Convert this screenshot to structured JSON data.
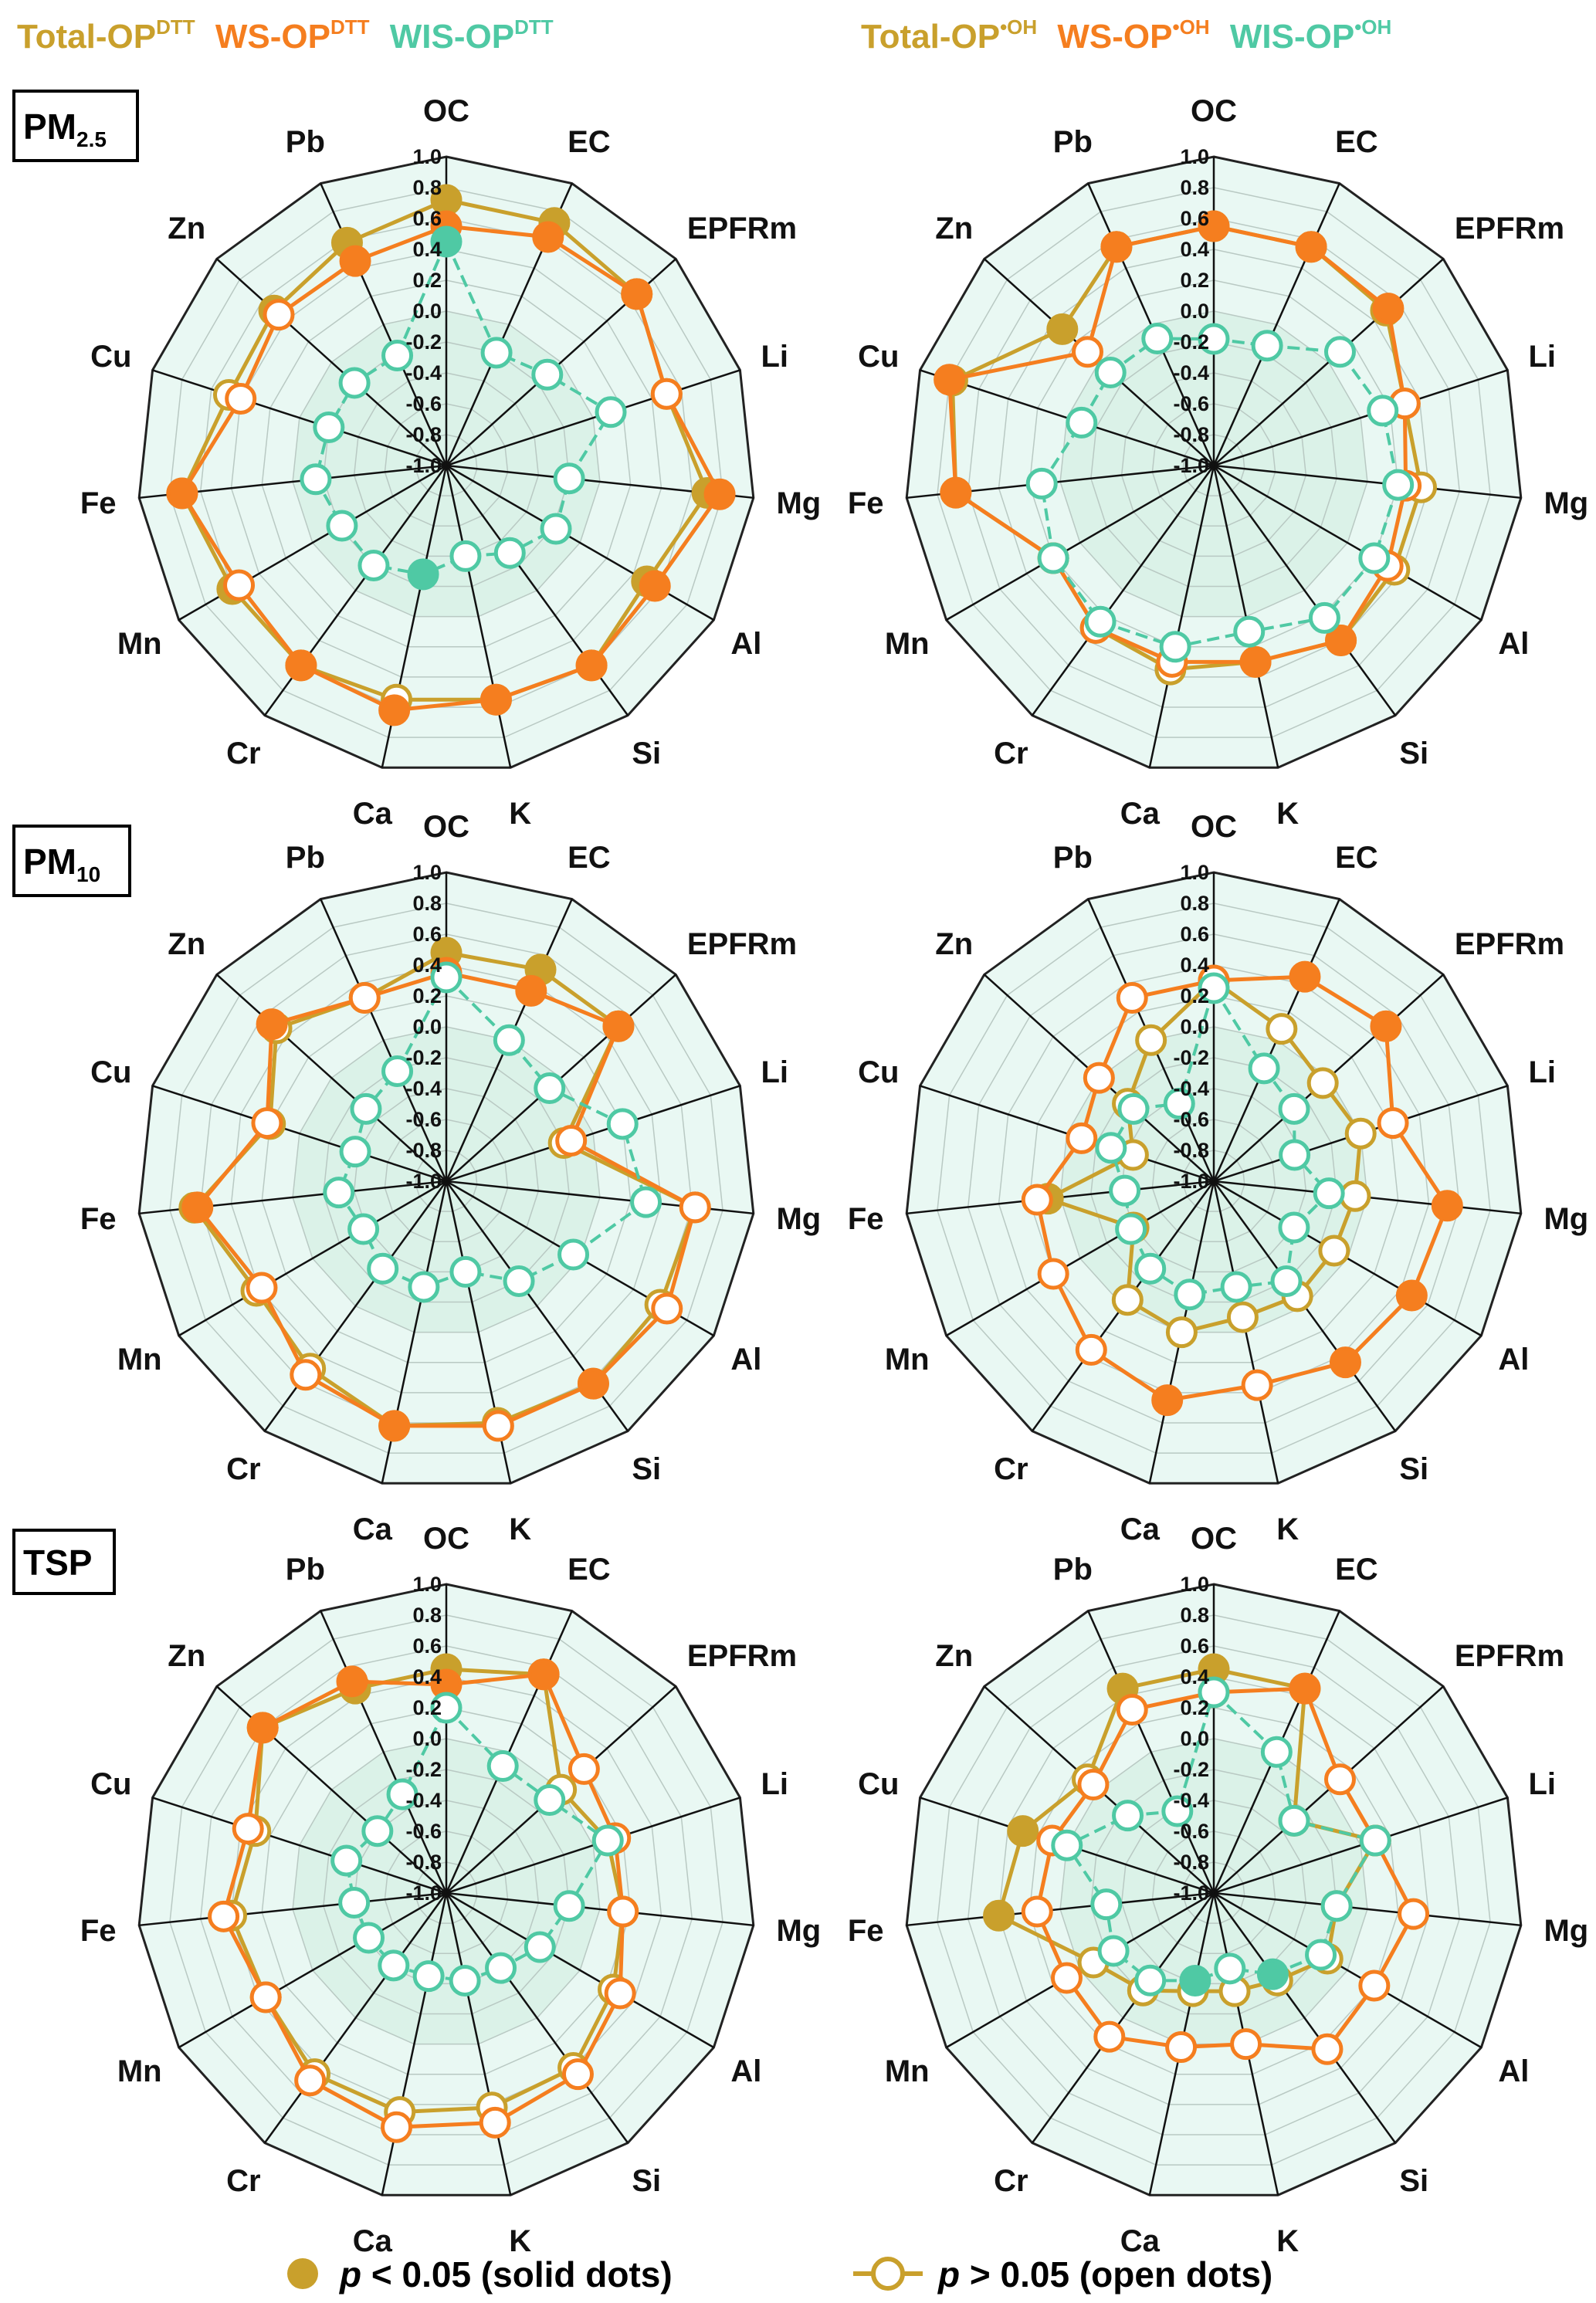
{
  "header": {
    "left": [
      {
        "base": "Total-OP",
        "sup": "DTT",
        "color": "#c9a02c"
      },
      {
        "base": "WS-OP",
        "sup": "DTT",
        "color": "#f57e1f"
      },
      {
        "base": "WIS-OP",
        "sup": "DTT",
        "color": "#4fc9a4"
      }
    ],
    "right": [
      {
        "base": "Total-OP",
        "sup": "•OH",
        "color": "#c9a02c"
      },
      {
        "base": "WS-OP",
        "sup": "•OH",
        "color": "#f57e1f"
      },
      {
        "base": "WIS-OP",
        "sup": "•OH",
        "color": "#4fc9a4"
      }
    ]
  },
  "row_labels": [
    {
      "base": "PM",
      "sub": "2.5"
    },
    {
      "base": "PM",
      "sub": "10"
    },
    {
      "base": "TSP",
      "sub": ""
    }
  ],
  "bottom_legend": {
    "solid_p": "p",
    "solid_text": " < 0.05 (solid dots)",
    "open_p": "p",
    "open_text": " > 0.05 (open dots)"
  },
  "colors": {
    "total": "#c9a02c",
    "ws": "#f57e1f",
    "wis": "#4fc9a4",
    "background": "#e9f8f3",
    "inner_fill": "#d2efe1"
  },
  "chart_data": [
    {
      "type": "radar",
      "row": "PM2.5",
      "op": "DTT",
      "categories": [
        "OC",
        "EC",
        "EPFRm",
        "Li",
        "Mg",
        "Al",
        "Si",
        "K",
        "Ca",
        "Cr",
        "Mn",
        "Fe",
        "Cu",
        "Zn",
        "Pb"
      ],
      "rlim": [
        -1.0,
        1.0
      ],
      "ticks": [
        "1.0",
        "0.8",
        "0.6",
        "0.4",
        "0.2",
        "0.0",
        "-0.2",
        "-0.4",
        "-0.6",
        "-0.8",
        "-1.0"
      ],
      "series": [
        {
          "name": "Total-OP",
          "values": [
            0.72,
            0.72,
            0.66,
            0.5,
            0.7,
            0.5,
            0.6,
            0.55,
            0.55,
            0.6,
            0.6,
            0.72,
            0.48,
            0.5,
            0.58
          ],
          "solid": [
            1,
            1,
            1,
            0,
            1,
            1,
            1,
            1,
            0,
            1,
            1,
            1,
            0,
            1,
            1
          ]
        },
        {
          "name": "WS-OP",
          "values": [
            0.55,
            0.62,
            0.66,
            0.5,
            0.78,
            0.56,
            0.6,
            0.55,
            0.62,
            0.6,
            0.55,
            0.72,
            0.4,
            0.46,
            0.45
          ],
          "solid": [
            1,
            1,
            1,
            0,
            1,
            1,
            1,
            1,
            1,
            1,
            0,
            1,
            0,
            0,
            1
          ]
        },
        {
          "name": "WIS-OP",
          "values": [
            0.45,
            -0.2,
            -0.12,
            0.12,
            -0.2,
            -0.18,
            -0.3,
            -0.4,
            -0.28,
            -0.2,
            -0.22,
            -0.15,
            -0.2,
            -0.2,
            -0.22
          ],
          "solid": [
            1,
            0,
            0,
            0,
            0,
            0,
            0,
            0,
            1,
            0,
            0,
            0,
            0,
            0,
            0
          ]
        }
      ]
    },
    {
      "type": "radar",
      "row": "PM2.5",
      "op": "•OH",
      "categories": [
        "OC",
        "EC",
        "EPFRm",
        "Li",
        "Mg",
        "Al",
        "Si",
        "K",
        "Ca",
        "Cr",
        "Mn",
        "Fe",
        "Cu",
        "Zn",
        "Pb"
      ],
      "rlim": [
        -1.0,
        1.0
      ],
      "ticks": [
        "1.0",
        "0.8",
        "0.6",
        "0.4",
        "0.2",
        "0.0",
        "-0.2",
        "-0.4",
        "-0.6",
        "-0.8",
        "-1.0"
      ],
      "series": [
        {
          "name": "Total-OP",
          "values": [
            0.55,
            0.55,
            0.5,
            0.3,
            0.35,
            0.35,
            0.4,
            0.3,
            0.35,
            0.3,
            0.2,
            0.68,
            0.78,
            0.32,
            0.55
          ],
          "solid": [
            1,
            1,
            1,
            0,
            0,
            0,
            1,
            0,
            0,
            0,
            0,
            1,
            1,
            1,
            1
          ]
        },
        {
          "name": "WS-OP",
          "values": [
            0.55,
            0.55,
            0.52,
            0.3,
            0.25,
            0.3,
            0.4,
            0.3,
            0.3,
            0.3,
            0.2,
            0.68,
            0.8,
            0.1,
            0.55
          ],
          "solid": [
            1,
            1,
            1,
            0,
            0,
            0,
            1,
            1,
            0,
            0,
            0,
            1,
            1,
            0,
            1
          ]
        },
        {
          "name": "WIS-OP",
          "values": [
            -0.18,
            -0.15,
            0.1,
            0.15,
            0.2,
            0.2,
            0.22,
            0.1,
            0.2,
            0.25,
            0.2,
            0.12,
            -0.1,
            -0.1,
            -0.1
          ],
          "solid": [
            0,
            0,
            0,
            0,
            0,
            0,
            0,
            0,
            0,
            0,
            0,
            0,
            0,
            0,
            0
          ]
        }
      ]
    },
    {
      "type": "radar",
      "row": "PM10",
      "op": "DTT",
      "categories": [
        "OC",
        "EC",
        "EPFRm",
        "Li",
        "Mg",
        "Al",
        "Si",
        "K",
        "Ca",
        "Cr",
        "Mn",
        "Fe",
        "Cu",
        "Zn",
        "Pb"
      ],
      "rlim": [
        -1.0,
        1.0
      ],
      "ticks": [
        "1.0",
        "0.8",
        "0.6",
        "0.4",
        "0.2",
        "0.0",
        "-0.2",
        "-0.4",
        "-0.6",
        "-0.8",
        "-1.0"
      ],
      "series": [
        {
          "name": "Total-OP",
          "values": [
            0.48,
            0.5,
            0.5,
            -0.2,
            0.62,
            0.6,
            0.62,
            0.6,
            0.62,
            0.5,
            0.42,
            0.64,
            0.2,
            0.48,
            0.3
          ],
          "solid": [
            1,
            1,
            1,
            0,
            0,
            0,
            1,
            0,
            0,
            0,
            0,
            1,
            0,
            0,
            0
          ]
        },
        {
          "name": "WS-OP",
          "values": [
            0.35,
            0.35,
            0.5,
            -0.15,
            0.62,
            0.65,
            0.62,
            0.62,
            0.62,
            0.55,
            0.38,
            0.62,
            0.22,
            0.52,
            0.3
          ],
          "solid": [
            1,
            1,
            1,
            0,
            0,
            0,
            1,
            0,
            1,
            0,
            0,
            1,
            0,
            1,
            0
          ]
        },
        {
          "name": "WIS-OP",
          "values": [
            0.32,
            0.0,
            -0.1,
            0.2,
            0.3,
            -0.05,
            -0.2,
            -0.4,
            -0.3,
            -0.3,
            -0.38,
            -0.3,
            -0.38,
            -0.3,
            -0.22
          ],
          "solid": [
            0,
            0,
            0,
            0,
            0,
            0,
            0,
            0,
            0,
            0,
            0,
            0,
            0,
            0,
            0
          ]
        }
      ]
    },
    {
      "type": "radar",
      "row": "PM10",
      "op": "•OH",
      "categories": [
        "OC",
        "EC",
        "EPFRm",
        "Li",
        "Mg",
        "Al",
        "Si",
        "K",
        "Ca",
        "Cr",
        "Mn",
        "Fe",
        "Cu",
        "Zn",
        "Pb"
      ],
      "rlim": [
        -1.0,
        1.0
      ],
      "ticks": [
        "1.0",
        "0.8",
        "0.6",
        "0.4",
        "0.2",
        "0.0",
        "-0.2",
        "-0.4",
        "-0.6",
        "-0.8",
        "-1.0"
      ],
      "series": [
        {
          "name": "Total-OP",
          "values": [
            0.3,
            0.08,
            -0.05,
            0.0,
            -0.08,
            -0.1,
            -0.08,
            -0.1,
            0.0,
            -0.05,
            -0.4,
            0.08,
            -0.45,
            -0.25,
            0.0
          ],
          "solid": [
            0,
            0,
            0,
            0,
            0,
            0,
            0,
            0,
            0,
            0,
            0,
            1,
            0,
            0,
            0
          ]
        },
        {
          "name": "WS-OP",
          "values": [
            0.3,
            0.45,
            0.5,
            0.22,
            0.52,
            0.48,
            0.45,
            0.35,
            0.45,
            0.35,
            0.2,
            0.15,
            -0.1,
            0.0,
            0.3
          ],
          "solid": [
            0,
            1,
            1,
            0,
            1,
            1,
            1,
            0,
            1,
            0,
            0,
            0,
            0,
            0,
            0
          ]
        },
        {
          "name": "WIS-OP",
          "values": [
            0.25,
            -0.2,
            -0.3,
            -0.45,
            -0.25,
            -0.4,
            -0.2,
            -0.3,
            -0.25,
            -0.3,
            -0.38,
            -0.42,
            -0.3,
            -0.3,
            -0.45
          ],
          "solid": [
            0,
            0,
            0,
            0,
            0,
            0,
            0,
            0,
            0,
            0,
            0,
            0,
            0,
            0,
            0
          ]
        }
      ]
    },
    {
      "type": "radar",
      "row": "TSP",
      "op": "DTT",
      "categories": [
        "OC",
        "EC",
        "EPFRm",
        "Li",
        "Mg",
        "Al",
        "Si",
        "K",
        "Ca",
        "Cr",
        "Mn",
        "Fe",
        "Cu",
        "Zn",
        "Pb"
      ],
      "rlim": [
        -1.0,
        1.0
      ],
      "ticks": [
        "1.0",
        "0.8",
        "0.6",
        "0.4",
        "0.2",
        "0.0",
        "-0.2",
        "-0.4",
        "-0.6",
        "-0.8",
        "-1.0"
      ],
      "series": [
        {
          "name": "Total-OP",
          "values": [
            0.45,
            0.55,
            0.0,
            0.1,
            0.15,
            0.25,
            0.4,
            0.42,
            0.45,
            0.45,
            0.35,
            0.4,
            0.3,
            0.6,
            0.45
          ],
          "solid": [
            1,
            1,
            0,
            0,
            0,
            0,
            0,
            0,
            0,
            0,
            0,
            0,
            0,
            1,
            1
          ]
        },
        {
          "name": "WS-OP",
          "values": [
            0.35,
            0.55,
            0.2,
            0.15,
            0.15,
            0.3,
            0.45,
            0.52,
            0.55,
            0.5,
            0.35,
            0.45,
            0.35,
            0.6,
            0.5
          ],
          "solid": [
            1,
            1,
            0,
            0,
            0,
            0,
            0,
            0,
            0,
            0,
            0,
            0,
            0,
            1,
            1
          ]
        },
        {
          "name": "WIS-OP",
          "values": [
            0.2,
            -0.1,
            -0.1,
            0.1,
            -0.2,
            -0.3,
            -0.4,
            -0.42,
            -0.45,
            -0.42,
            -0.42,
            -0.4,
            -0.32,
            -0.4,
            -0.3
          ],
          "solid": [
            0,
            0,
            0,
            0,
            0,
            0,
            0,
            0,
            0,
            0,
            0,
            0,
            0,
            0,
            0
          ]
        }
      ]
    },
    {
      "type": "radar",
      "row": "TSP",
      "op": "•OH",
      "categories": [
        "OC",
        "EC",
        "EPFRm",
        "Li",
        "Mg",
        "Al",
        "Si",
        "K",
        "Ca",
        "Cr",
        "Mn",
        "Fe",
        "Cu",
        "Zn",
        "Pb"
      ],
      "rlim": [
        -1.0,
        1.0
      ],
      "ticks": [
        "1.0",
        "0.8",
        "0.6",
        "0.4",
        "0.2",
        "0.0",
        "-0.2",
        "-0.4",
        "-0.6",
        "-0.8",
        "-1.0"
      ],
      "series": [
        {
          "name": "Total-OP",
          "values": [
            0.45,
            0.45,
            -0.3,
            0.1,
            -0.2,
            -0.15,
            -0.3,
            -0.35,
            -0.35,
            -0.22,
            -0.1,
            0.4,
            0.3,
            0.1,
            0.45
          ],
          "solid": [
            1,
            1,
            0,
            0,
            0,
            0,
            0,
            0,
            0,
            0,
            0,
            1,
            1,
            0,
            1
          ]
        },
        {
          "name": "WS-OP",
          "values": [
            0.3,
            0.45,
            0.1,
            0.1,
            0.3,
            0.2,
            0.25,
            0.0,
            0.02,
            0.15,
            0.1,
            0.15,
            0.1,
            0.05,
            0.3
          ],
          "solid": [
            0,
            1,
            0,
            0,
            0,
            0,
            0,
            0,
            0,
            0,
            0,
            0,
            0,
            0,
            0
          ]
        },
        {
          "name": "WIS-OP",
          "values": [
            0.3,
            0.0,
            -0.3,
            0.1,
            -0.2,
            -0.2,
            -0.35,
            -0.5,
            -0.42,
            -0.3,
            -0.25,
            -0.3,
            0.0,
            -0.25,
            -0.42
          ],
          "solid": [
            0,
            0,
            0,
            0,
            0,
            0,
            1,
            0,
            1,
            0,
            0,
            0,
            0,
            0,
            0
          ]
        }
      ]
    }
  ]
}
